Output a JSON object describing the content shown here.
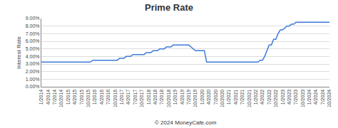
{
  "chart_data": {
    "type": "line",
    "title": "Prime Rate",
    "y_label": "Interest Rate",
    "source": "© 2024 MoneyCafe.com",
    "color": "#3d7bd9",
    "grid": true,
    "categories": [
      "1/2014",
      null,
      null,
      "4/2014",
      null,
      null,
      "7/2014",
      null,
      null,
      "10/2014",
      null,
      null,
      "1/2015",
      null,
      null,
      "4/2015",
      null,
      null,
      "7/2015",
      null,
      null,
      "10/2015",
      null,
      null,
      "1/2016",
      null,
      null,
      "4/2016",
      null,
      null,
      "7/2016",
      null,
      null,
      "10/2016",
      null,
      null,
      "1/2017",
      null,
      null,
      "4/2017",
      null,
      null,
      "7/2017",
      null,
      null,
      "10/2017",
      null,
      null,
      "1/2018",
      null,
      null,
      "4/2018",
      null,
      null,
      "7/2018",
      null,
      null,
      "10/2018",
      null,
      null,
      "1/2019",
      null,
      null,
      "4/2019",
      null,
      null,
      "7/2019",
      null,
      null,
      "10/2019",
      null,
      null,
      "1/2020",
      null,
      null,
      "4/2020",
      null,
      null,
      "7/2020",
      null,
      null,
      "10/2020",
      null,
      null,
      "1/2021",
      null,
      null,
      "4/2021",
      null,
      null,
      "7/2021",
      null,
      null,
      "10/2021",
      null,
      null,
      "1/2022",
      null,
      null,
      "4/2022",
      null,
      null,
      "7/2022",
      null,
      null,
      "10/2022",
      null,
      null,
      "1/2023",
      null,
      null,
      "4/2023",
      null,
      null,
      "7/2023",
      null,
      null,
      "10/2023",
      null,
      null,
      "1/2024",
      null,
      null,
      "4/2024",
      null,
      null,
      "7/2024",
      null,
      null,
      "10/2024"
    ],
    "values": [
      3.25,
      3.25,
      3.25,
      3.25,
      3.25,
      3.25,
      3.25,
      3.25,
      3.25,
      3.25,
      3.25,
      3.25,
      3.25,
      3.25,
      3.25,
      3.25,
      3.25,
      3.25,
      3.25,
      3.25,
      3.25,
      3.25,
      3.25,
      3.5,
      3.5,
      3.5,
      3.5,
      3.5,
      3.5,
      3.5,
      3.5,
      3.5,
      3.5,
      3.5,
      3.5,
      3.75,
      3.75,
      3.75,
      4.0,
      4.0,
      4.0,
      4.25,
      4.25,
      4.25,
      4.25,
      4.25,
      4.25,
      4.5,
      4.5,
      4.5,
      4.75,
      4.75,
      4.75,
      5.0,
      5.0,
      5.0,
      5.25,
      5.25,
      5.25,
      5.5,
      5.5,
      5.5,
      5.5,
      5.5,
      5.5,
      5.5,
      5.5,
      5.25,
      5.0,
      4.75,
      4.75,
      4.75,
      4.75,
      4.75,
      3.25,
      3.25,
      3.25,
      3.25,
      3.25,
      3.25,
      3.25,
      3.25,
      3.25,
      3.25,
      3.25,
      3.25,
      3.25,
      3.25,
      3.25,
      3.25,
      3.25,
      3.25,
      3.25,
      3.25,
      3.25,
      3.25,
      3.25,
      3.25,
      3.5,
      3.5,
      4.0,
      4.75,
      5.5,
      5.5,
      6.25,
      6.25,
      7.0,
      7.5,
      7.5,
      7.75,
      8.0,
      8.0,
      8.25,
      8.25,
      8.5,
      8.5,
      8.5,
      8.5,
      8.5,
      8.5,
      8.5,
      8.5,
      8.5,
      8.5,
      8.5,
      8.5,
      8.5,
      8.5,
      8.5,
      8.5
    ],
    "ylim": [
      0,
      9
    ],
    "yticks": [
      {
        "value": 0,
        "label": "0.00%"
      },
      {
        "value": 1,
        "label": "1.00%"
      },
      {
        "value": 2,
        "label": "2.00%"
      },
      {
        "value": 3,
        "label": "3.00%"
      },
      {
        "value": 4,
        "label": "4.00%"
      },
      {
        "value": 5,
        "label": "5.00%"
      },
      {
        "value": 6,
        "label": "6.00%"
      },
      {
        "value": 7,
        "label": "7.00%"
      },
      {
        "value": 8,
        "label": "8.00%"
      },
      {
        "value": 9,
        "label": "9.00%"
      }
    ]
  }
}
